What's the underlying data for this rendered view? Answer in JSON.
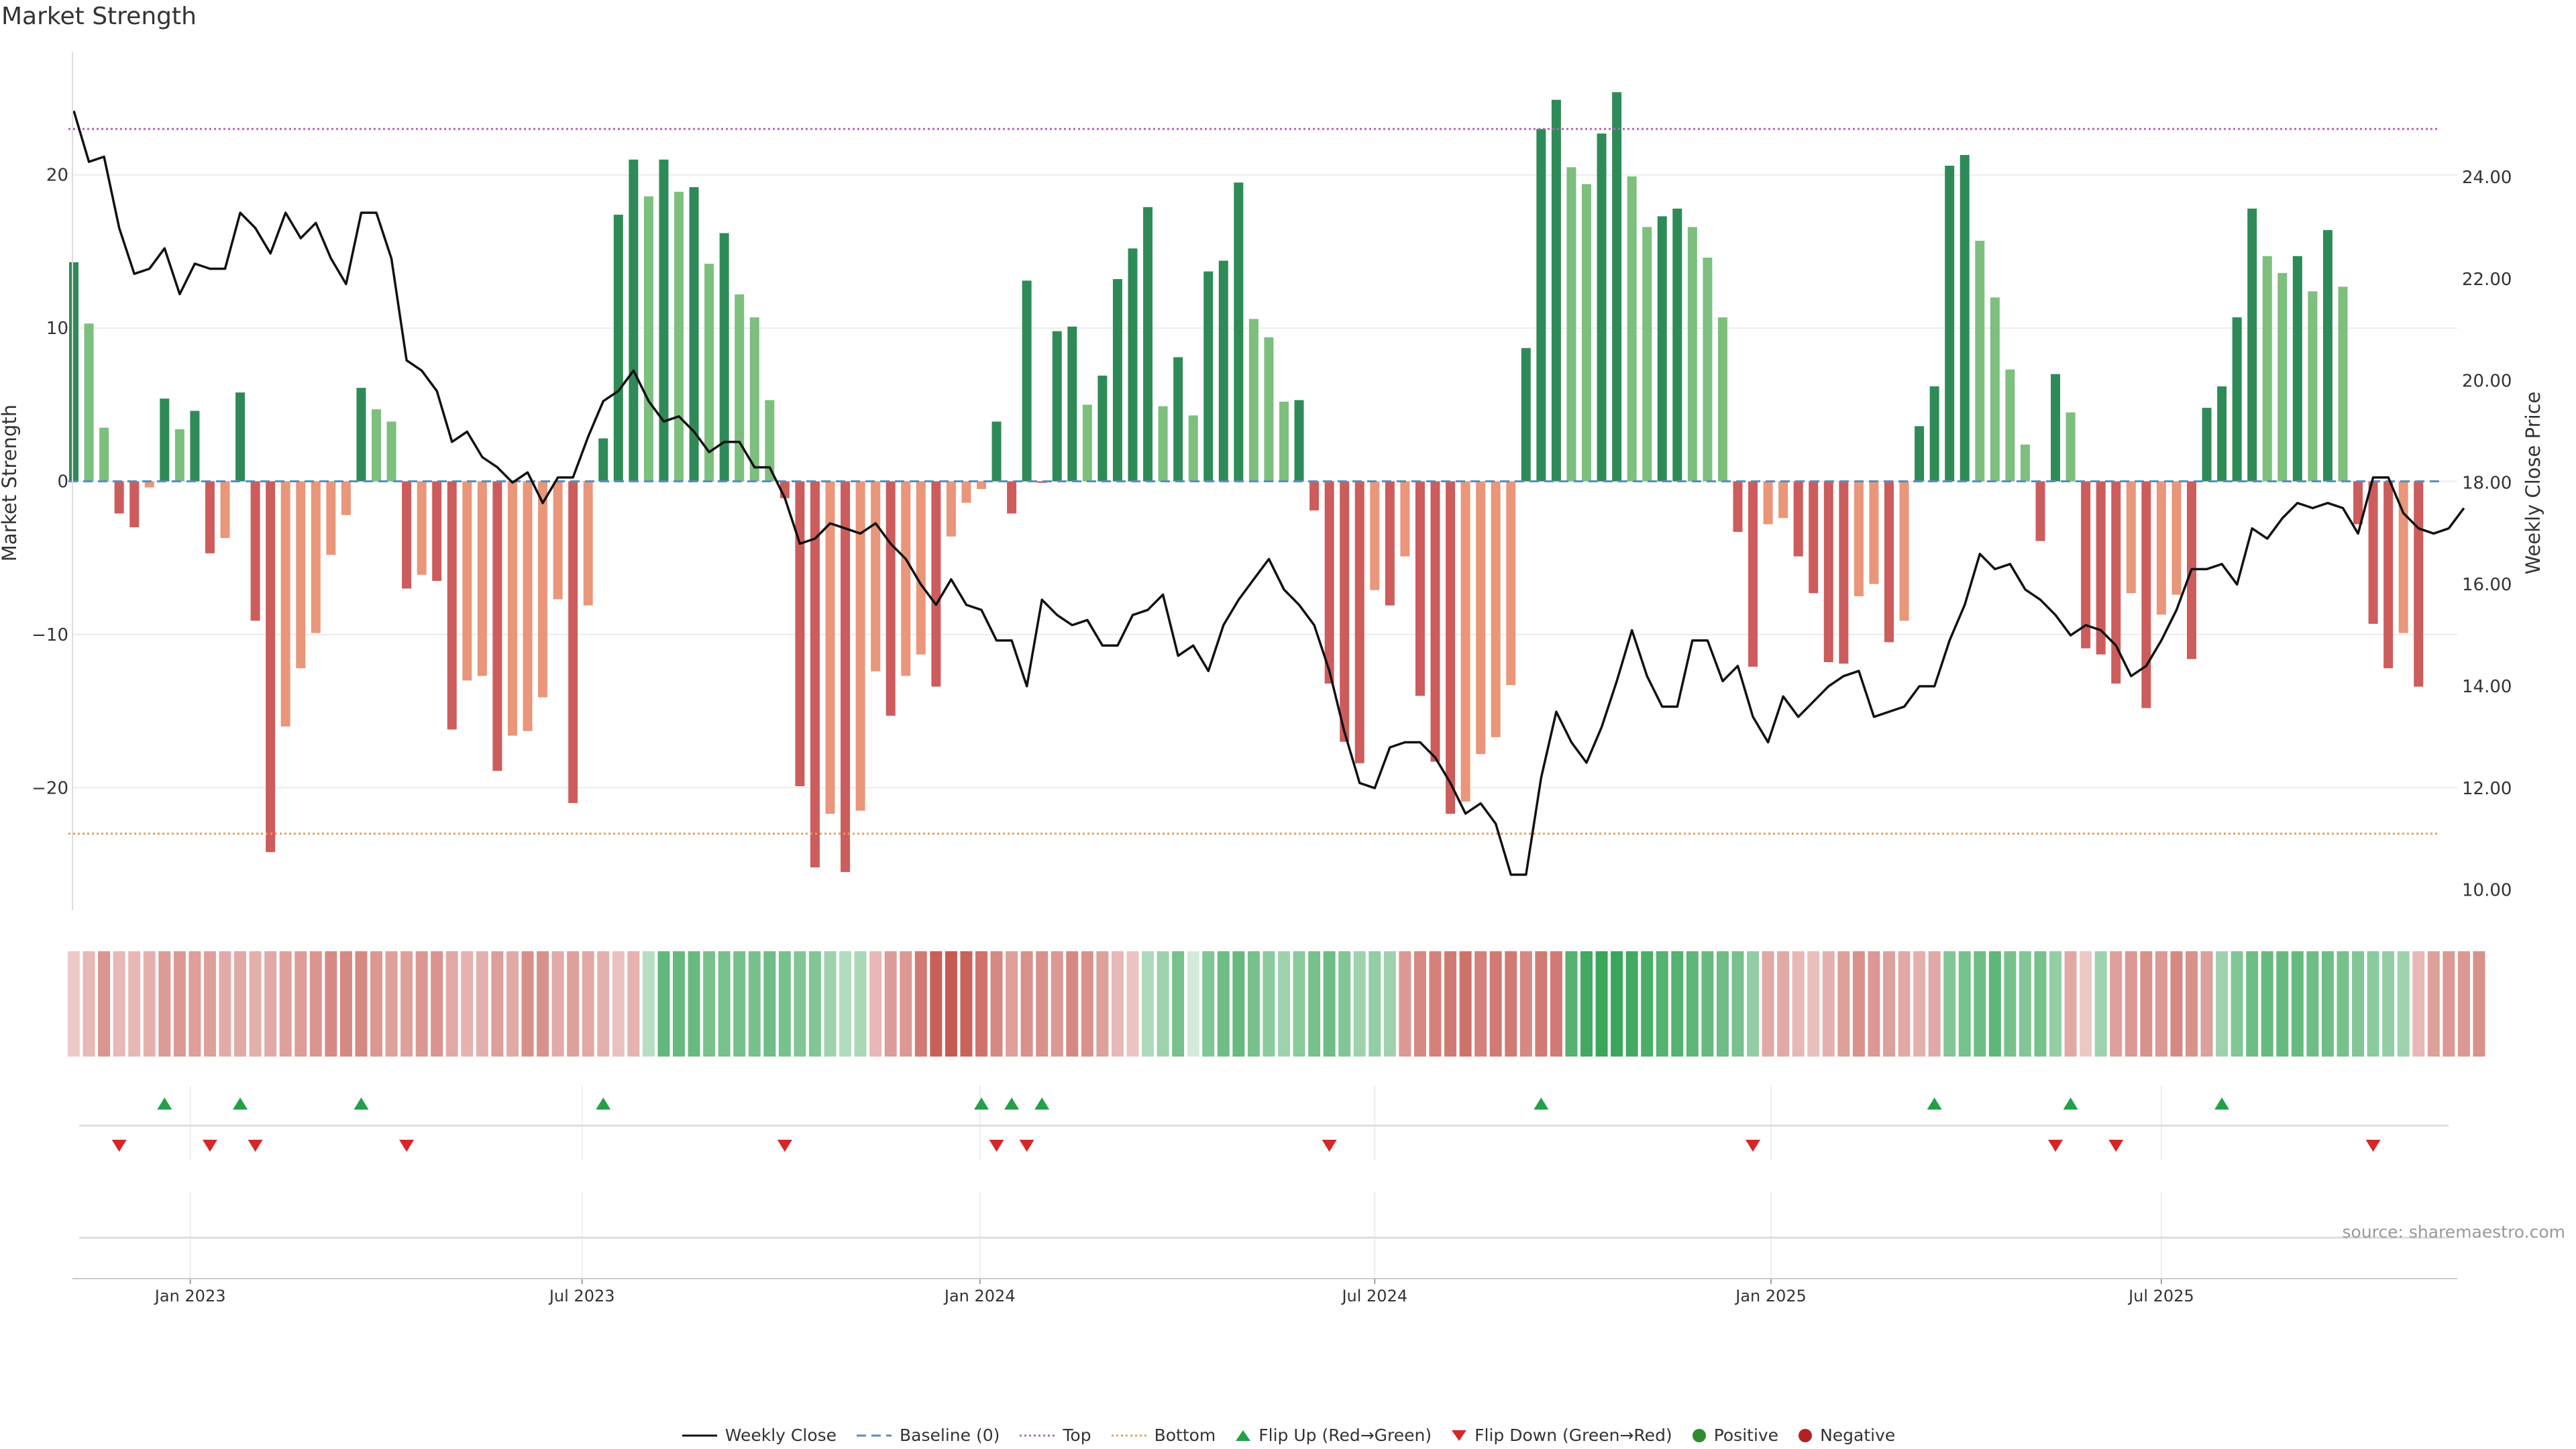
{
  "chart_data": {
    "type": "bar",
    "title": "Market Strength",
    "ylabel_left": "Market Strength",
    "ylabel_right": "Weekly Close Price",
    "left_ylim": [
      -28,
      28
    ],
    "left_ticks": [
      20,
      10,
      0,
      -10,
      -20
    ],
    "left_tick_labels": [
      "20",
      "10",
      "0",
      "−10",
      "−20"
    ],
    "right_ylim": [
      9.6,
      26.45
    ],
    "right_ticks": [
      24,
      22,
      20,
      18,
      16,
      14,
      12,
      10
    ],
    "right_tick_labels": [
      "24.00",
      "22.00",
      "20.00",
      "18.00",
      "16.00",
      "14.00",
      "12.00",
      "10.00"
    ],
    "top_threshold": 23,
    "bottom_threshold": -23,
    "baseline": 0,
    "x_start": "2022-11-07",
    "weeks": 157,
    "x_ticks": [
      "Jan 2023",
      "Jul 2023",
      "Jan 2024",
      "Jul 2024",
      "Jan 2025",
      "Jul 2025"
    ],
    "x_tick_week": [
      7.7,
      33.6,
      59.9,
      86,
      112.2,
      138
    ],
    "strength": [
      14.3,
      10.3,
      3.5,
      -2.1,
      -3,
      -0.4,
      5.4,
      3.4,
      4.6,
      -4.7,
      -3.7,
      5.8,
      -9.1,
      -24.2,
      -16,
      -12.2,
      -9.9,
      -4.8,
      -2.2,
      6.1,
      4.7,
      3.9,
      -7,
      -6.1,
      -6.5,
      -16.2,
      -13,
      -12.7,
      -18.9,
      -16.6,
      -16.3,
      -14.1,
      -7.7,
      -21,
      -8.1,
      2.8,
      17.4,
      21,
      18.6,
      21,
      18.9,
      19.2,
      14.2,
      16.2,
      12.2,
      10.7,
      5.3,
      -1.1,
      -19.9,
      -25.2,
      -21.7,
      -25.5,
      -21.5,
      -12.4,
      -15.3,
      -12.7,
      -11.3,
      -13.4,
      -3.6,
      -1.4,
      -0.5,
      3.9,
      -2.1,
      13.1,
      -0.1,
      9.8,
      10.1,
      5,
      6.9,
      13.2,
      15.2,
      17.9,
      4.9,
      8.1,
      4.3,
      13.7,
      14.4,
      19.5,
      10.6,
      9.4,
      5.2,
      5.3,
      -1.9,
      -13.2,
      -17,
      -18.4,
      -7.1,
      -8.1,
      -4.9,
      -14,
      -18.3,
      -21.7,
      -20.9,
      -17.8,
      -16.7,
      -13.3,
      8.7,
      23,
      24.9,
      20.5,
      19.4,
      22.7,
      25.4,
      19.9,
      16.6,
      17.3,
      17.8,
      16.6,
      14.6,
      10.7,
      -3.3,
      -12.1,
      -2.8,
      -2.4,
      -4.9,
      -7.3,
      -11.8,
      -11.9,
      -7.5,
      -6.7,
      -10.5,
      -9.1,
      3.6,
      6.2,
      20.6,
      21.3,
      15.7,
      12,
      7.3,
      2.4,
      -3.9,
      7,
      4.5,
      -10.9,
      -11.3,
      -13.2,
      -7.3,
      -14.8,
      -8.7,
      -7.4,
      -11.6,
      4.8,
      6.2,
      10.7,
      17.8,
      14.7,
      13.6,
      14.7,
      12.4,
      16.4,
      12.7,
      -2.8,
      -9.3,
      -12.2,
      -9.9,
      -13.4
    ],
    "close_price": [
      25.3,
      24.3,
      24.4,
      23,
      22.1,
      22.2,
      22.6,
      21.7,
      22.3,
      22.2,
      22.2,
      23.3,
      23,
      22.5,
      23.3,
      22.8,
      23.1,
      22.4,
      21.9,
      23.3,
      23.3,
      22.4,
      20.4,
      20.2,
      19.8,
      18.8,
      19,
      18.5,
      18.3,
      18,
      18.2,
      17.6,
      18.1,
      18.1,
      18.9,
      19.6,
      19.8,
      20.2,
      19.6,
      19.2,
      19.3,
      19,
      18.6,
      18.8,
      18.8,
      18.3,
      18.3,
      17.7,
      16.8,
      16.9,
      17.2,
      17.1,
      17,
      17.2,
      16.8,
      16.5,
      16,
      15.6,
      16.1,
      15.6,
      15.5,
      14.9,
      14.9,
      14,
      15.7,
      15.4,
      15.2,
      15.3,
      14.8,
      14.8,
      15.4,
      15.5,
      15.8,
      14.6,
      14.8,
      14.3,
      15.2,
      15.7,
      16.1,
      16.5,
      15.9,
      15.6,
      15.2,
      14.3,
      13.1,
      12.1,
      12,
      12.8,
      12.9,
      12.9,
      12.6,
      12.1,
      11.5,
      11.7,
      11.3,
      10.3,
      10.3,
      12.2,
      13.5,
      12.9,
      12.5,
      13.2,
      14.1,
      15.1,
      14.2,
      13.6,
      13.6,
      14.9,
      14.9,
      14.1,
      14.4,
      13.4,
      12.9,
      13.8,
      13.4,
      13.7,
      14,
      14.2,
      14.3,
      13.4,
      13.5,
      13.6,
      14,
      14,
      14.9,
      15.6,
      16.6,
      16.3,
      16.4,
      15.9,
      15.7,
      15.4,
      15,
      15.2,
      15.1,
      14.8,
      14.2,
      14.4,
      14.9,
      15.5,
      16.3,
      16.3,
      16.4,
      16,
      17.1,
      16.9,
      17.3,
      17.6,
      17.5,
      17.6,
      17.5,
      17,
      18.1,
      18.1,
      17.4,
      17.1,
      17,
      17.1,
      17.5
    ],
    "heat_scale": [
      -0.08,
      -0.2,
      -0.42,
      -0.2,
      -0.2,
      -0.25,
      -0.39,
      -0.4,
      -0.36,
      -0.35,
      -0.28,
      -0.3,
      -0.26,
      -0.3,
      -0.35,
      -0.38,
      -0.42,
      -0.49,
      -0.5,
      -0.5,
      -0.41,
      -0.35,
      -0.35,
      -0.41,
      -0.43,
      -0.3,
      -0.24,
      -0.25,
      -0.36,
      -0.3,
      -0.46,
      -0.45,
      -0.28,
      -0.35,
      -0.3,
      -0.25,
      -0.14,
      -0.24,
      0.15,
      0.62,
      0.6,
      0.6,
      0.5,
      0.5,
      0.52,
      0.5,
      0.55,
      0.5,
      0.45,
      0.45,
      0.3,
      0.18,
      0.22,
      -0.2,
      -0.38,
      -0.4,
      -0.6,
      -0.76,
      -0.8,
      -0.75,
      -0.65,
      -0.5,
      -0.35,
      -0.45,
      -0.45,
      -0.4,
      -0.5,
      -0.45,
      -0.35,
      -0.2,
      -0.12,
      0.2,
      0.3,
      0.5,
      0,
      0.45,
      0.55,
      0.6,
      0.5,
      0.4,
      0.3,
      0.4,
      0.5,
      0.55,
      0.45,
      0.3,
      0.35,
      0.3,
      -0.4,
      -0.5,
      -0.55,
      -0.6,
      -0.65,
      -0.55,
      -0.6,
      -0.6,
      -0.5,
      -0.6,
      -0.6,
      0.7,
      0.8,
      0.85,
      0.85,
      0.8,
      0.75,
      0.7,
      0.7,
      0.65,
      0.6,
      0.55,
      0.5,
      0.35,
      -0.3,
      -0.3,
      -0.2,
      -0.15,
      -0.25,
      -0.35,
      -0.45,
      -0.4,
      -0.35,
      -0.3,
      -0.25,
      -0.3,
      0.45,
      0.5,
      0.55,
      0.65,
      0.5,
      0.45,
      0.5,
      0.35,
      -0.3,
      -0.1,
      0.3,
      -0.35,
      -0.4,
      -0.45,
      -0.4,
      -0.5,
      -0.45,
      -0.35,
      0.3,
      0.45,
      0.55,
      0.6,
      0.6,
      0.6,
      0.55,
      0.55,
      0.5,
      0.45,
      0.4,
      0.35,
      0.3,
      -0.2,
      -0.35,
      -0.4,
      -0.4,
      -0.45
    ],
    "flip_up_weeks": [
      6,
      11,
      19,
      35,
      60,
      62,
      64,
      97,
      123,
      132,
      142
    ],
    "flip_down_weeks": [
      3,
      9,
      12,
      22,
      47,
      61,
      63,
      83,
      111,
      131,
      135,
      152
    ],
    "legend": [
      "Weekly Close",
      "Baseline (0)",
      "Top",
      "Bottom",
      "Flip Up (Red→Green)",
      "Flip Down (Green→Red)",
      "Positive",
      "Negative"
    ],
    "source": "source: sharemaestro.com"
  },
  "colors": {
    "green_dark": "#2e8b57",
    "green_light": "#7dbf7d",
    "red_dark": "#cd5c5c",
    "red_light": "#e9967a",
    "top_line": "#b565b5",
    "bottom_line": "#e0a060",
    "baseline": "#5b8db8",
    "close_line": "#111111",
    "flip_up": "#22a04a",
    "flip_down": "#d62728",
    "positive_dot": "#2e8b2e",
    "negative_dot": "#b22222"
  }
}
